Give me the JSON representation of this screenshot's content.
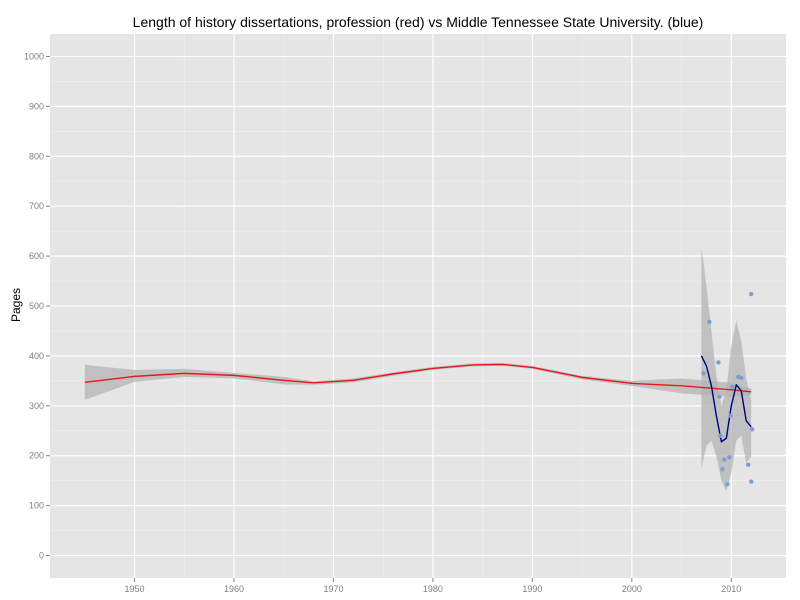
{
  "chart_data": {
    "type": "line",
    "title": "Length of history dissertations, profession (red) vs Middle Tennessee State University. (blue)",
    "xlabel": "",
    "ylabel": "Pages",
    "xlim": [
      1941.5,
      2015.5
    ],
    "ylim": [
      -45,
      1045
    ],
    "x_ticks": [
      1950,
      1960,
      1970,
      1980,
      1990,
      2000,
      2010
    ],
    "y_ticks": [
      0,
      100,
      200,
      300,
      400,
      500,
      600,
      700,
      800,
      900,
      1000
    ],
    "grid": true,
    "background": "#e5e5e5",
    "grid_color": "#ffffff",
    "series": [
      {
        "color": "#e41a1c",
        "ribbon_color": "#b3b3b3",
        "x": [
          1945,
          1950,
          1955,
          1960,
          1965,
          1968,
          1972,
          1976,
          1980,
          1984,
          1987,
          1990,
          1995,
          2000,
          2005,
          2010,
          2012
        ],
        "y": [
          347,
          359,
          365,
          361,
          351,
          346,
          351,
          364,
          375,
          382,
          383,
          377,
          357,
          345,
          340,
          332,
          328
        ],
        "lower": [
          312,
          348,
          358,
          355,
          343,
          342,
          347,
          360,
          372,
          379,
          380,
          374,
          353,
          340,
          325,
          318,
          322
        ],
        "upper": [
          382,
          372,
          374,
          366,
          358,
          349,
          355,
          367,
          378,
          385,
          386,
          380,
          360,
          350,
          355,
          346,
          334
        ]
      },
      {
        "color": "#000080",
        "ribbon_color": "#b3b3b3",
        "point_color": "#7b9ed8",
        "x": [
          2007,
          2007.5,
          2008,
          2008.5,
          2009,
          2009.5,
          2010,
          2010.5,
          2011,
          2011.5,
          2012
        ],
        "y": [
          400,
          380,
          340,
          280,
          228,
          235,
          300,
          342,
          330,
          270,
          258
        ],
        "lower": [
          175,
          220,
          230,
          200,
          150,
          130,
          165,
          230,
          240,
          185,
          200
        ],
        "upper": [
          620,
          540,
          450,
          360,
          300,
          330,
          420,
          470,
          430,
          355,
          310
        ],
        "points": [
          {
            "x": 2007.2,
            "y": 365
          },
          {
            "x": 2007.8,
            "y": 468
          },
          {
            "x": 2008.7,
            "y": 387
          },
          {
            "x": 2008.8,
            "y": 318
          },
          {
            "x": 2008.9,
            "y": 240
          },
          {
            "x": 2009.1,
            "y": 173
          },
          {
            "x": 2009.3,
            "y": 192
          },
          {
            "x": 2009.6,
            "y": 143
          },
          {
            "x": 2009.8,
            "y": 197
          },
          {
            "x": 2009.9,
            "y": 280
          },
          {
            "x": 2010.1,
            "y": 338
          },
          {
            "x": 2010.7,
            "y": 358
          },
          {
            "x": 2011.0,
            "y": 356
          },
          {
            "x": 2011.7,
            "y": 182
          },
          {
            "x": 2012.0,
            "y": 524
          },
          {
            "x": 2012.0,
            "y": 148
          },
          {
            "x": 2012.1,
            "y": 253
          }
        ]
      }
    ]
  }
}
